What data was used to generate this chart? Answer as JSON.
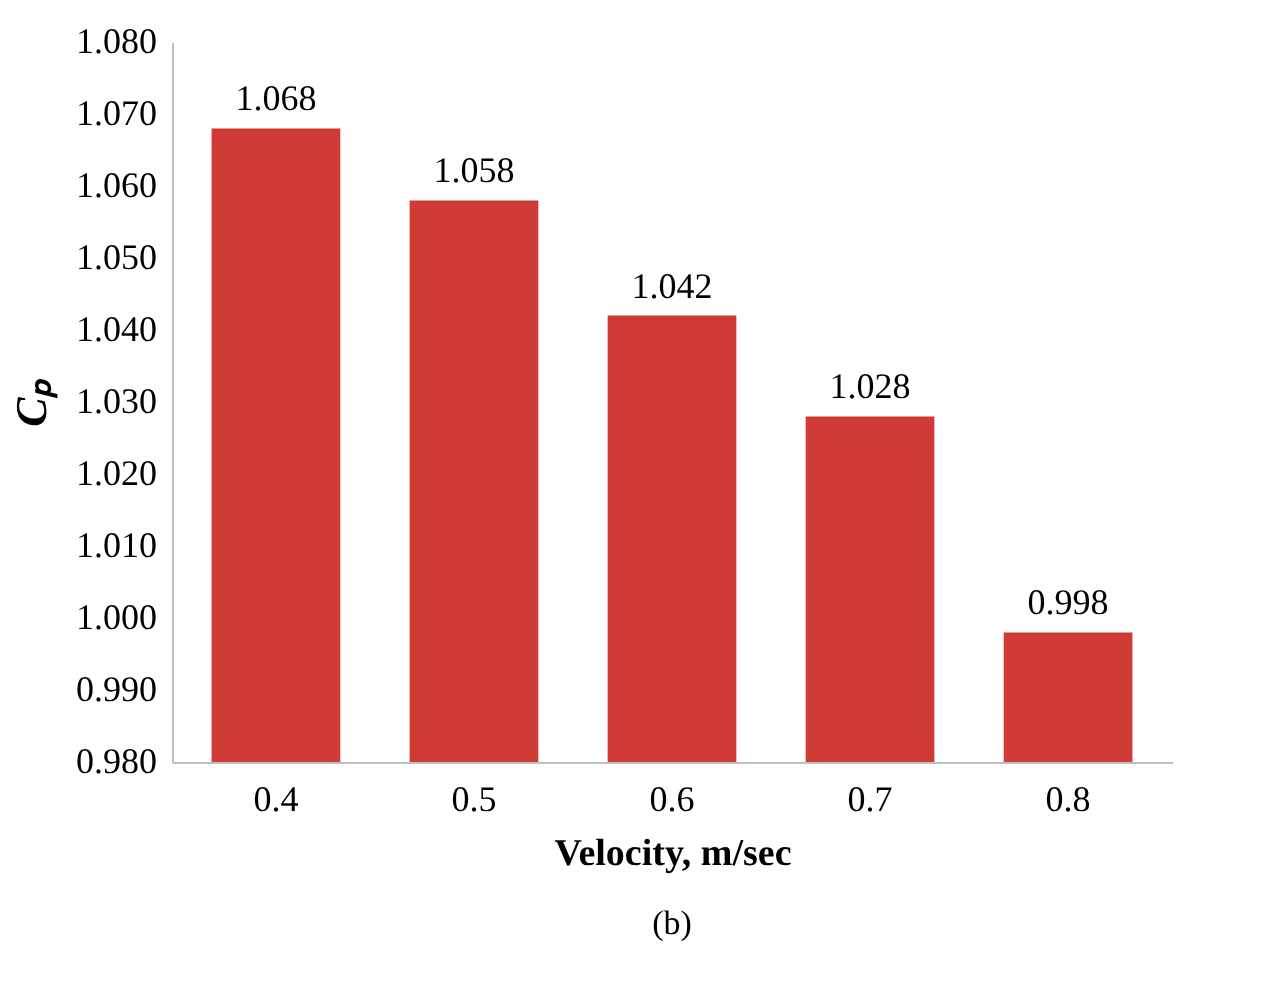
{
  "chart_data": {
    "type": "bar",
    "xlabel": "Velocity, m/sec",
    "ylabel": "Cₚ",
    "annotations": [
      "(b)"
    ],
    "categories": [
      "0.4",
      "0.5",
      "0.6",
      "0.7",
      "0.8"
    ],
    "values": [
      1.068,
      1.058,
      1.042,
      1.028,
      0.998
    ],
    "color": "#d03b36",
    "ylim": [
      0.98,
      1.08
    ],
    "yticks": [
      {
        "value": 0.98,
        "label": "0.980"
      },
      {
        "value": 0.99,
        "label": "0.990"
      },
      {
        "value": 1.0,
        "label": "1.000"
      },
      {
        "value": 1.01,
        "label": "1.010"
      },
      {
        "value": 1.02,
        "label": "1.020"
      },
      {
        "value": 1.03,
        "label": "1.030"
      },
      {
        "value": 1.04,
        "label": "1.040"
      },
      {
        "value": 1.05,
        "label": "1.050"
      },
      {
        "value": 1.06,
        "label": "1.060"
      },
      {
        "value": 1.07,
        "label": "1.070"
      },
      {
        "value": 1.08,
        "label": "1.080"
      }
    ],
    "data_labels": true,
    "grid": false
  }
}
